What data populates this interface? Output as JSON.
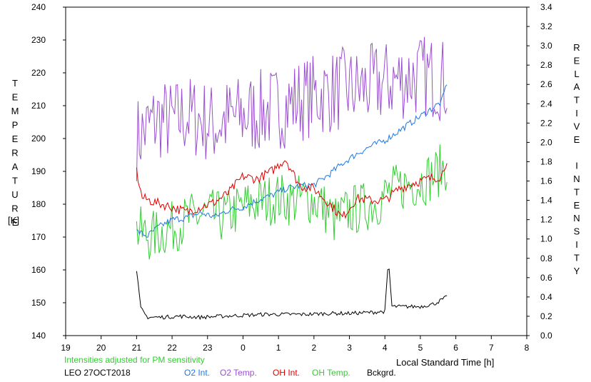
{
  "colors": {
    "o2_int": "#1f78e0",
    "o2_temp": "#9b4fd0",
    "oh_int": "#e00000",
    "oh_temp": "#33cc33",
    "bckgrd": "#000000",
    "adjust_note": "#33cc33"
  },
  "footer": {
    "note": "Intensities adjusted for PM sensitivity",
    "station": "LEO 27OCT2018",
    "legend": {
      "o2_int": "O2 Int.",
      "o2_temp": "O2 Temp.",
      "oh_int": "OH Int.",
      "oh_temp": "OH Temp.",
      "bckgrd": "Bckgrd."
    }
  },
  "chart_data": {
    "type": "line",
    "xlabel": "Local Standard Time [h]",
    "ylabel_left": "TEMPERATURE [K]",
    "ylabel_right": "RELATIVE INTENSITY",
    "x_ticks": [
      "19",
      "20",
      "21",
      "22",
      "23",
      "0",
      "1",
      "2",
      "3",
      "4",
      "5",
      "6",
      "7",
      "8"
    ],
    "ylim_left": [
      140,
      240
    ],
    "ylim_right": [
      0.0,
      3.4
    ],
    "yticks_left": [
      "140",
      "150",
      "160",
      "170",
      "180",
      "190",
      "200",
      "210",
      "220",
      "230",
      "240"
    ],
    "yticks_right": [
      "0.0",
      "0.2",
      "0.4",
      "0.6",
      "0.8",
      "1.0",
      "1.2",
      "1.4",
      "1.6",
      "1.8",
      "2.0",
      "2.2",
      "2.4",
      "2.6",
      "2.8",
      "3.0",
      "3.2",
      "3.4"
    ],
    "series": [
      {
        "name": "O2 Temp.",
        "axis": "left",
        "x_hours": [
          21,
          21.3,
          21.6,
          22,
          22.4,
          22.8,
          23.2,
          23.6,
          24,
          24.4,
          24.8,
          25.2,
          25.6,
          26,
          26.4,
          26.8,
          27.2,
          27.6,
          28,
          28.4,
          28.8,
          29.2,
          29.6,
          29.75
        ],
        "values": [
          200,
          203,
          206,
          205,
          207,
          206,
          204,
          206,
          207,
          208,
          209,
          210,
          212,
          213,
          214,
          215,
          215,
          216,
          217,
          218,
          219,
          219,
          218,
          217
        ]
      },
      {
        "name": "O2 Int.",
        "axis": "right",
        "x_hours": [
          21,
          21.3,
          21.6,
          22,
          22.4,
          22.8,
          23.2,
          23.6,
          24,
          24.4,
          24.8,
          25.2,
          25.6,
          26,
          26.4,
          26.8,
          27.2,
          27.6,
          28,
          28.4,
          28.8,
          29.2,
          29.6,
          29.75
        ],
        "values": [
          1.08,
          1.03,
          1.12,
          1.2,
          1.22,
          1.27,
          1.23,
          1.3,
          1.33,
          1.4,
          1.45,
          1.52,
          1.55,
          1.56,
          1.66,
          1.78,
          1.88,
          1.96,
          2.02,
          2.12,
          2.22,
          2.32,
          2.42,
          2.62
        ]
      },
      {
        "name": "OH Int.",
        "axis": "right",
        "x_hours": [
          21,
          21.15,
          21.5,
          22,
          22.4,
          22.8,
          23.2,
          23.6,
          24,
          24.4,
          24.8,
          25.2,
          25.6,
          26,
          26.4,
          26.8,
          27.2,
          27.6,
          28,
          28.4,
          28.8,
          29.2,
          29.6,
          29.75
        ],
        "values": [
          1.7,
          1.43,
          1.38,
          1.33,
          1.28,
          1.33,
          1.38,
          1.48,
          1.65,
          1.62,
          1.7,
          1.83,
          1.55,
          1.52,
          1.38,
          1.22,
          1.42,
          1.4,
          1.4,
          1.52,
          1.58,
          1.62,
          1.65,
          1.83
        ]
      },
      {
        "name": "OH Temp.",
        "axis": "left",
        "x_hours": [
          21,
          21.4,
          21.8,
          22.2,
          22.6,
          23,
          23.4,
          23.8,
          24.2,
          24.6,
          25,
          25.4,
          25.8,
          26.2,
          26.6,
          27,
          27.4,
          27.8,
          28.2,
          28.6,
          29,
          29.4,
          29.75
        ],
        "values": [
          172,
          170,
          172,
          174,
          176,
          177,
          176,
          178,
          180,
          181,
          182,
          181,
          182,
          180,
          175,
          178,
          179,
          181,
          184,
          186,
          187,
          189,
          192
        ]
      },
      {
        "name": "Bckgrd.",
        "axis": "right",
        "x_hours": [
          21,
          21.12,
          21.3,
          21.7,
          22.2,
          22.8,
          23.4,
          24,
          24.6,
          25.2,
          25.8,
          26.4,
          27,
          27.6,
          28,
          28.1,
          28.2,
          28.6,
          29,
          29.4,
          29.75
        ],
        "values": [
          0.66,
          0.28,
          0.19,
          0.19,
          0.2,
          0.19,
          0.2,
          0.21,
          0.22,
          0.22,
          0.22,
          0.23,
          0.23,
          0.24,
          0.25,
          0.78,
          0.3,
          0.3,
          0.3,
          0.33,
          0.4
        ]
      }
    ]
  }
}
